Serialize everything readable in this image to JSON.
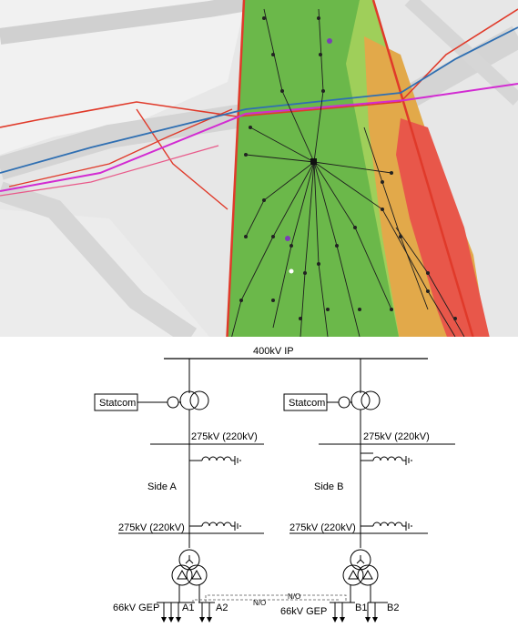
{
  "map": {
    "colors": {
      "base": "#e7e7e7",
      "land": "#f3f3f3",
      "zone_green": "#6bb84a",
      "zone_lightgreen": "#9fcf5a",
      "zone_orange": "#e2a94a",
      "zone_red": "#e8574a",
      "boundary_red": "#e03a2a",
      "cable_blue": "#2f6fb2",
      "cable_magenta": "#d22bd2",
      "cable_pink": "#e85a8a",
      "shipping_lane": "#d2d2d2"
    }
  },
  "diagram": {
    "busbar_400_label": "400kV IP",
    "side_a": {
      "statcom_label": "Statcom",
      "bus_top_label": "275kV (220kV)",
      "side_label": "Side A",
      "bus_bottom_label": "275kV (220kV)",
      "gep_label": "66kV GEP",
      "sub_bus_1_label": "A1",
      "sub_bus_2_label": "A2"
    },
    "side_b": {
      "statcom_label": "Statcom",
      "bus_top_label": "275kV (220kV)",
      "side_label": "Side B",
      "bus_bottom_label": "275kV (220kV)",
      "gep_label": "66kV GEP",
      "sub_bus_1_label": "B1",
      "sub_bus_2_label": "B2"
    },
    "normally_open_label_1": "N/O",
    "normally_open_label_2": "N/O"
  }
}
